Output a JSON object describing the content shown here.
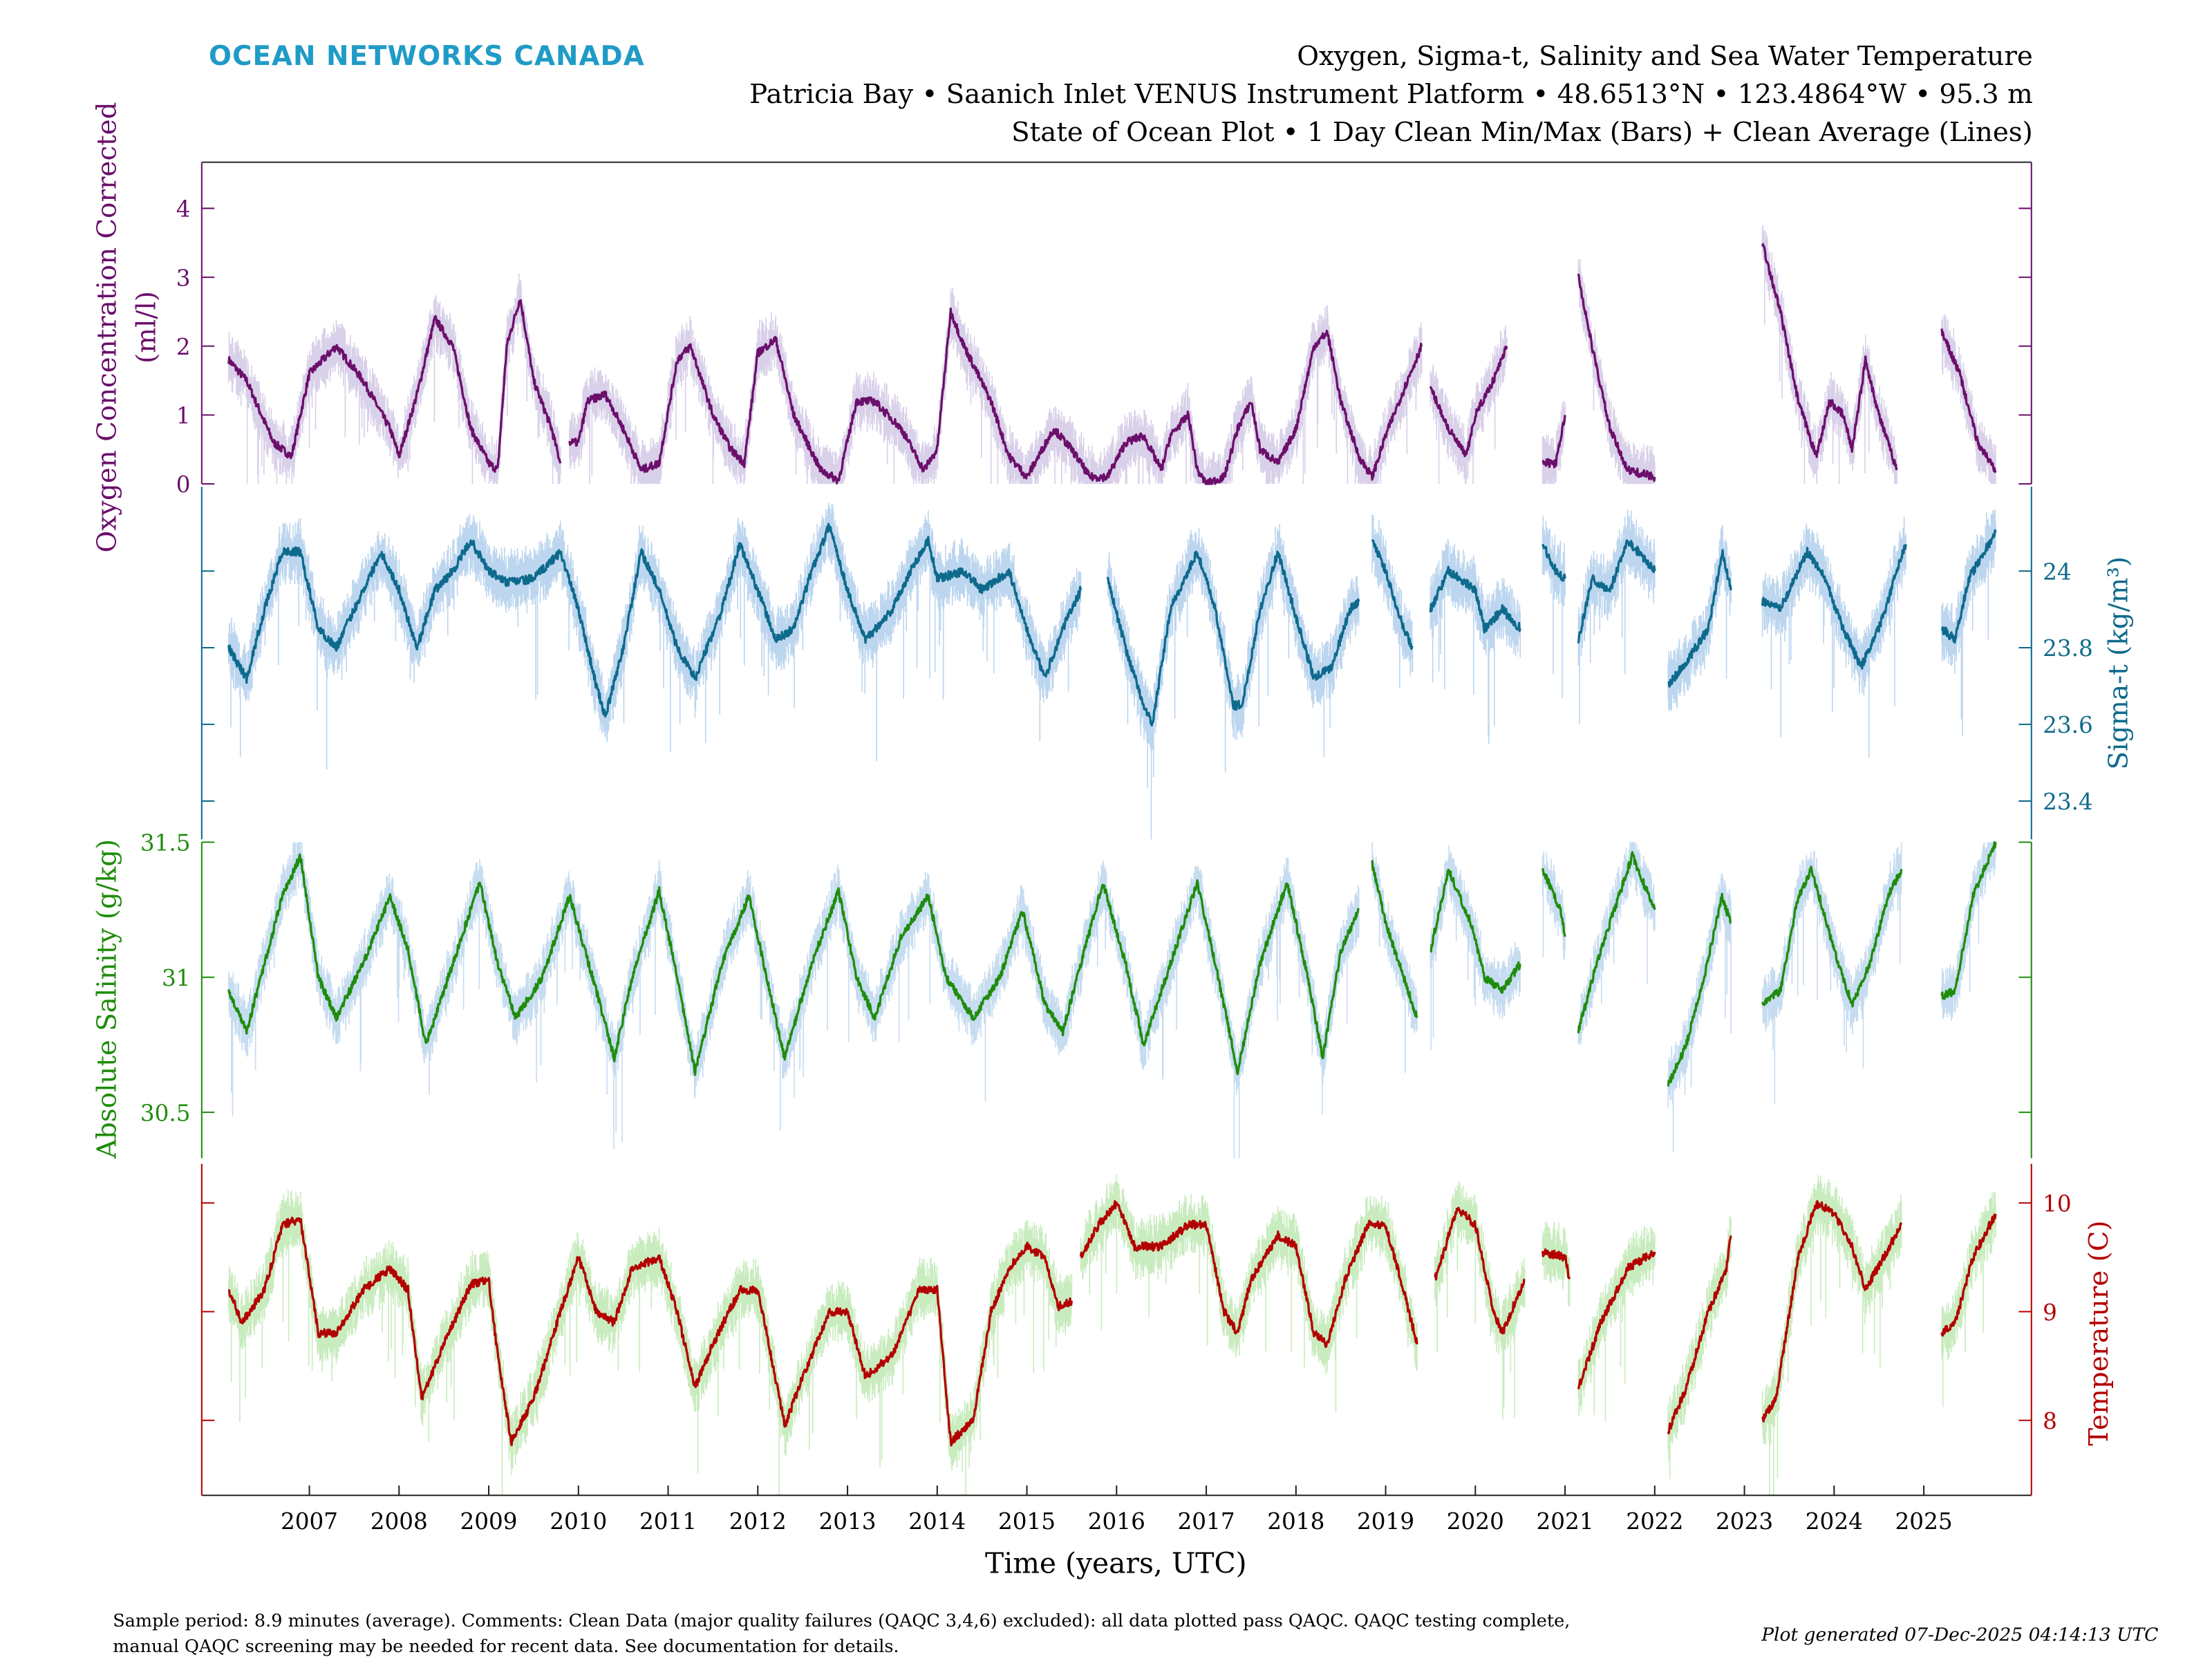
{
  "header": {
    "brand": "OCEAN NETWORKS CANADA",
    "brand_color": "#1f9bc6",
    "title": "Oxygen, Sigma-t, Salinity and Sea Water Temperature",
    "subtitle": "Patricia Bay • Saanich Inlet VENUS Instrument Platform • 48.6513°N • 123.4864°W • 95.3 m",
    "subtitle2": "State of Ocean Plot • 1 Day Clean Min/Max (Bars) + Clean Average (Lines)"
  },
  "footer": {
    "comment_line1": "Sample period: 8.9 minutes (average). Comments: Clean Data (major quality failures (QAQC 3,4,6) excluded): all data plotted pass QAQC. QAQC testing complete,",
    "comment_line2": "manual QAQC screening may be needed for recent data. See documentation for details.",
    "generated": "Plot generated 07-Dec-2025 04:14:13 UTC"
  },
  "chart_data": {
    "type": "line",
    "xlabel": "Time (years, UTC)",
    "xlim": [
      2005.8,
      2026.2
    ],
    "x_ticks": [
      "2007",
      "2008",
      "2009",
      "2010",
      "2011",
      "2012",
      "2013",
      "2014",
      "2015",
      "2016",
      "2017",
      "2018",
      "2019",
      "2020",
      "2021",
      "2022",
      "2023",
      "2024",
      "2025"
    ],
    "grid": false,
    "panels": [
      {
        "id": "oxygen",
        "ylabel_line1": "Oxygen Concentration Corrected",
        "ylabel_line2": "(ml/l)",
        "axis_side": "left",
        "color": "#6b0f6b",
        "band_color": "#d9d0e9",
        "ylim": [
          0,
          4.67
        ],
        "ticks": [
          "0",
          "1",
          "2",
          "3",
          "4"
        ],
        "tick_values": [
          0,
          1,
          2,
          3,
          4
        ],
        "x": [
          2006.1,
          2006.3,
          2006.6,
          2006.8,
          2007.0,
          2007.3,
          2007.6,
          2007.9,
          2008.0,
          2008.2,
          2008.4,
          2008.6,
          2008.8,
          2009.0,
          2009.1,
          2009.2,
          2009.35,
          2009.5,
          2009.7,
          2009.8,
          2009.85,
          2009.9,
          2010.0,
          2010.1,
          2010.3,
          2010.5,
          2010.7,
          2010.9,
          2011.1,
          2011.25,
          2011.5,
          2011.7,
          2011.85,
          2012.0,
          2012.2,
          2012.4,
          2012.7,
          2012.9,
          2013.1,
          2013.3,
          2013.6,
          2013.85,
          2014.0,
          2014.15,
          2014.3,
          2014.6,
          2014.8,
          2015.0,
          2015.3,
          2015.5,
          2015.7,
          2015.9,
          2016.1,
          2016.3,
          2016.5,
          2016.6,
          2016.8,
          2016.9,
          2017.0,
          2017.2,
          2017.35,
          2017.5,
          2017.6,
          2017.8,
          2018.0,
          2018.2,
          2018.35,
          2018.5,
          2018.7,
          2018.85,
          2019.0,
          2019.15,
          2019.4,
          2019.45,
          2019.5,
          2019.7,
          2019.9,
          2020.0,
          2020.2,
          2020.35,
          2020.5,
          2020.75,
          2020.9,
          2021.0,
          2021.07,
          2021.15,
          2021.3,
          2021.5,
          2021.7,
          2022.0,
          2022.5,
          2023.2,
          2023.4,
          2023.6,
          2023.8,
          2023.95,
          2024.1,
          2024.2,
          2024.35,
          2024.5,
          2024.7,
          2025.0,
          2025.2,
          2025.4,
          2025.6,
          2025.8
        ],
        "y": [
          1.8,
          1.5,
          0.6,
          0.4,
          1.6,
          2.0,
          1.5,
          0.8,
          0.4,
          1.3,
          2.4,
          2.0,
          0.8,
          0.3,
          0.2,
          2.0,
          2.7,
          1.5,
          0.8,
          0.3,
          null,
          0.6,
          0.6,
          1.2,
          1.3,
          0.8,
          0.2,
          0.3,
          1.8,
          2.0,
          1.0,
          0.5,
          0.3,
          1.9,
          2.1,
          1.0,
          0.2,
          0.05,
          1.2,
          1.2,
          0.8,
          0.2,
          0.5,
          2.5,
          2.0,
          1.2,
          0.4,
          0.1,
          0.8,
          0.5,
          0.1,
          0.1,
          0.6,
          0.7,
          0.2,
          0.7,
          1.0,
          0.2,
          0.0,
          0.1,
          0.8,
          1.2,
          0.5,
          0.3,
          0.8,
          2.0,
          2.2,
          1.2,
          0.4,
          0.1,
          0.7,
          1.2,
          2.0,
          null,
          1.4,
          0.8,
          0.4,
          1.0,
          1.5,
          2.0,
          null,
          0.3,
          0.3,
          1.0,
          null,
          3.0,
          2.0,
          0.8,
          0.2,
          0.1,
          null,
          3.5,
          2.5,
          1.2,
          0.4,
          1.2,
          1.0,
          0.5,
          1.8,
          1.0,
          0.2,
          null,
          2.2,
          1.6,
          0.6,
          0.2
        ]
      },
      {
        "id": "sigma_t",
        "ylabel": "Sigma-t (kg/m³)",
        "axis_side": "right",
        "color": "#0e6a8c",
        "band_color": "#bdd6ef",
        "ylim": [
          23.3,
          24.22
        ],
        "ticks": [
          "23.4",
          "23.6",
          "23.8",
          "24"
        ],
        "tick_values": [
          23.4,
          23.6,
          23.8,
          24.0
        ],
        "x": [
          2006.1,
          2006.3,
          2006.5,
          2006.7,
          2006.9,
          2007.1,
          2007.3,
          2007.6,
          2007.8,
          2008.0,
          2008.2,
          2008.4,
          2008.6,
          2008.8,
          2009.0,
          2009.2,
          2009.5,
          2009.8,
          2010.0,
          2010.2,
          2010.3,
          2010.5,
          2010.7,
          2010.9,
          2011.1,
          2011.3,
          2011.6,
          2011.8,
          2012.0,
          2012.2,
          2012.4,
          2012.6,
          2012.8,
          2013.0,
          2013.2,
          2013.5,
          2013.7,
          2013.9,
          2014.0,
          2014.3,
          2014.5,
          2014.8,
          2015.0,
          2015.2,
          2015.4,
          2015.6,
          2015.7,
          2015.9,
          2016.1,
          2016.3,
          2016.4,
          2016.6,
          2016.9,
          2017.1,
          2017.3,
          2017.4,
          2017.6,
          2017.8,
          2018.0,
          2018.2,
          2018.4,
          2018.6,
          2018.7,
          2018.75,
          2018.85,
          2019.0,
          2019.2,
          2019.3,
          2019.4,
          2019.5,
          2019.7,
          2020.0,
          2020.1,
          2020.3,
          2020.5,
          2020.6,
          2020.75,
          2020.9,
          2021.0,
          2021.07,
          2021.15,
          2021.3,
          2021.5,
          2021.7,
          2022.0,
          2022.07,
          2022.15,
          2022.4,
          2022.6,
          2022.75,
          2022.85,
          2023.0,
          2023.2,
          2023.4,
          2023.7,
          2023.9,
          2024.1,
          2024.3,
          2024.5,
          2024.7,
          2024.8,
          2025.0,
          2025.2,
          2025.35,
          2025.5,
          2025.8
        ],
        "y": [
          23.8,
          23.72,
          23.9,
          24.05,
          24.05,
          23.85,
          23.8,
          23.95,
          24.05,
          23.95,
          23.8,
          23.95,
          24.0,
          24.08,
          24.0,
          23.97,
          23.98,
          24.05,
          23.9,
          23.7,
          23.62,
          23.8,
          24.05,
          23.95,
          23.8,
          23.72,
          23.9,
          24.07,
          23.95,
          23.82,
          23.85,
          24.0,
          24.12,
          23.95,
          23.82,
          23.9,
          24.0,
          24.08,
          23.98,
          24.0,
          23.95,
          24.0,
          23.85,
          23.72,
          23.85,
          23.95,
          null,
          23.98,
          23.8,
          23.65,
          23.6,
          23.9,
          24.05,
          23.9,
          23.65,
          23.65,
          23.9,
          24.05,
          23.88,
          23.72,
          23.75,
          23.9,
          23.92,
          null,
          24.08,
          24.0,
          23.85,
          23.8,
          null,
          23.9,
          24.0,
          23.95,
          23.85,
          23.9,
          23.85,
          null,
          24.07,
          24.0,
          23.98,
          null,
          23.82,
          23.98,
          23.95,
          24.08,
          24.0,
          null,
          23.7,
          23.78,
          23.85,
          24.05,
          23.95,
          null,
          23.92,
          23.9,
          24.05,
          23.98,
          23.85,
          23.75,
          23.85,
          24.0,
          24.07,
          null,
          23.85,
          23.82,
          23.98,
          24.1
        ]
      },
      {
        "id": "salinity",
        "ylabel": "Absolute Salinity (g/kg)",
        "axis_side": "left",
        "color": "#1f8c0c",
        "band_color": "#c6dcf0",
        "ylim": [
          30.33,
          31.5
        ],
        "ticks": [
          "30.5",
          "31",
          "31.5"
        ],
        "tick_values": [
          30.5,
          31.0,
          31.5
        ],
        "x": [
          2006.1,
          2006.3,
          2006.5,
          2006.7,
          2006.9,
          2007.1,
          2007.3,
          2007.6,
          2007.9,
          2008.1,
          2008.3,
          2008.6,
          2008.9,
          2009.1,
          2009.3,
          2009.6,
          2009.9,
          2010.2,
          2010.4,
          2010.6,
          2010.9,
          2011.1,
          2011.3,
          2011.6,
          2011.9,
          2012.1,
          2012.3,
          2012.6,
          2012.9,
          2013.1,
          2013.3,
          2013.6,
          2013.9,
          2014.1,
          2014.4,
          2014.7,
          2014.95,
          2015.2,
          2015.4,
          2015.6,
          2015.85,
          2016.1,
          2016.3,
          2016.6,
          2016.9,
          2017.1,
          2017.35,
          2017.6,
          2017.9,
          2018.1,
          2018.3,
          2018.5,
          2018.7,
          2018.78,
          2018.85,
          2019.0,
          2019.2,
          2019.35,
          2019.42,
          2019.5,
          2019.7,
          2019.95,
          2020.1,
          2020.3,
          2020.5,
          2020.6,
          2020.75,
          2020.95,
          2021.0,
          2021.07,
          2021.15,
          2021.35,
          2021.6,
          2021.75,
          2022.0,
          2022.07,
          2022.15,
          2022.35,
          2022.55,
          2022.75,
          2022.85,
          2023.0,
          2023.2,
          2023.4,
          2023.6,
          2023.75,
          2024.0,
          2024.2,
          2024.4,
          2024.6,
          2024.75,
          2025.0,
          2025.2,
          2025.35,
          2025.55,
          2025.8
        ],
        "y": [
          30.95,
          30.8,
          31.05,
          31.3,
          31.45,
          31.0,
          30.85,
          31.05,
          31.3,
          31.1,
          30.75,
          31.05,
          31.35,
          31.05,
          30.85,
          31.0,
          31.3,
          30.95,
          30.7,
          31.0,
          31.32,
          31.0,
          30.65,
          31.05,
          31.3,
          31.0,
          30.7,
          31.05,
          31.32,
          31.0,
          30.85,
          31.15,
          31.3,
          31.0,
          30.85,
          31.0,
          31.25,
          30.9,
          30.8,
          31.05,
          31.35,
          31.05,
          30.75,
          31.05,
          31.35,
          31.05,
          30.65,
          31.05,
          31.35,
          31.05,
          30.7,
          31.1,
          31.25,
          null,
          31.42,
          31.2,
          31.0,
          30.85,
          null,
          31.1,
          31.4,
          31.2,
          31.0,
          30.95,
          31.05,
          null,
          31.4,
          31.25,
          31.15,
          null,
          30.8,
          31.05,
          31.3,
          31.45,
          31.25,
          null,
          30.6,
          30.75,
          31.0,
          31.3,
          31.2,
          null,
          30.9,
          30.95,
          31.3,
          31.4,
          31.1,
          30.9,
          31.05,
          31.3,
          31.4,
          null,
          30.93,
          30.95,
          31.3,
          31.5
        ]
      },
      {
        "id": "temperature",
        "ylabel": "Temperature (C)",
        "axis_side": "right",
        "color": "#b30000",
        "band_color": "#c9ecbf",
        "ylim": [
          7.31,
          10.36
        ],
        "ticks": [
          "8",
          "9",
          "10"
        ],
        "tick_values": [
          8,
          9,
          10
        ],
        "x": [
          2006.1,
          2006.25,
          2006.5,
          2006.7,
          2006.9,
          2007.1,
          2007.3,
          2007.6,
          2007.9,
          2008.1,
          2008.25,
          2008.5,
          2008.8,
          2009.0,
          2009.1,
          2009.25,
          2009.5,
          2009.8,
          2010.0,
          2010.2,
          2010.4,
          2010.6,
          2010.9,
          2011.1,
          2011.3,
          2011.5,
          2011.8,
          2012.0,
          2012.1,
          2012.3,
          2012.5,
          2012.8,
          2013.0,
          2013.2,
          2013.5,
          2013.8,
          2014.0,
          2014.15,
          2014.4,
          2014.6,
          2014.8,
          2015.0,
          2015.2,
          2015.35,
          2015.5,
          2015.55,
          2015.6,
          2015.8,
          2016.0,
          2016.2,
          2016.5,
          2016.8,
          2017.0,
          2017.2,
          2017.35,
          2017.5,
          2017.8,
          2018.0,
          2018.2,
          2018.35,
          2018.55,
          2018.8,
          2019.0,
          2019.2,
          2019.35,
          2019.45,
          2019.55,
          2019.8,
          2020.0,
          2020.2,
          2020.3,
          2020.55,
          2020.65,
          2020.75,
          2021.0,
          2021.05,
          2021.1,
          2021.15,
          2021.4,
          2021.7,
          2022.0,
          2022.07,
          2022.15,
          2022.35,
          2022.6,
          2022.8,
          2022.85,
          2023.0,
          2023.2,
          2023.35,
          2023.6,
          2023.8,
          2024.0,
          2024.2,
          2024.35,
          2024.55,
          2024.75,
          2025.0,
          2025.2,
          2025.35,
          2025.55,
          2025.8
        ],
        "y": [
          9.2,
          8.9,
          9.2,
          9.8,
          9.85,
          8.8,
          8.8,
          9.2,
          9.4,
          9.2,
          8.2,
          8.7,
          9.25,
          9.3,
          8.6,
          7.8,
          8.2,
          9.0,
          9.5,
          9.0,
          8.9,
          9.4,
          9.5,
          9.0,
          8.3,
          8.7,
          9.2,
          9.2,
          8.8,
          7.95,
          8.4,
          9.0,
          9.0,
          8.4,
          8.6,
          9.2,
          9.2,
          7.8,
          8.0,
          9.0,
          9.4,
          9.6,
          9.5,
          9.05,
          9.1,
          null,
          9.5,
          9.8,
          10.0,
          9.6,
          9.6,
          9.8,
          9.8,
          9.0,
          8.8,
          9.3,
          9.7,
          9.6,
          8.8,
          8.7,
          9.3,
          9.8,
          9.8,
          9.2,
          8.7,
          null,
          9.3,
          9.95,
          9.8,
          9.0,
          8.8,
          9.3,
          null,
          9.55,
          9.5,
          9.3,
          null,
          8.3,
          8.9,
          9.4,
          9.55,
          null,
          7.9,
          8.3,
          9.0,
          9.4,
          9.7,
          null,
          8.0,
          8.2,
          9.5,
          10.0,
          9.9,
          9.6,
          9.2,
          9.5,
          9.8,
          null,
          8.8,
          8.9,
          9.5,
          9.9
        ]
      }
    ]
  }
}
